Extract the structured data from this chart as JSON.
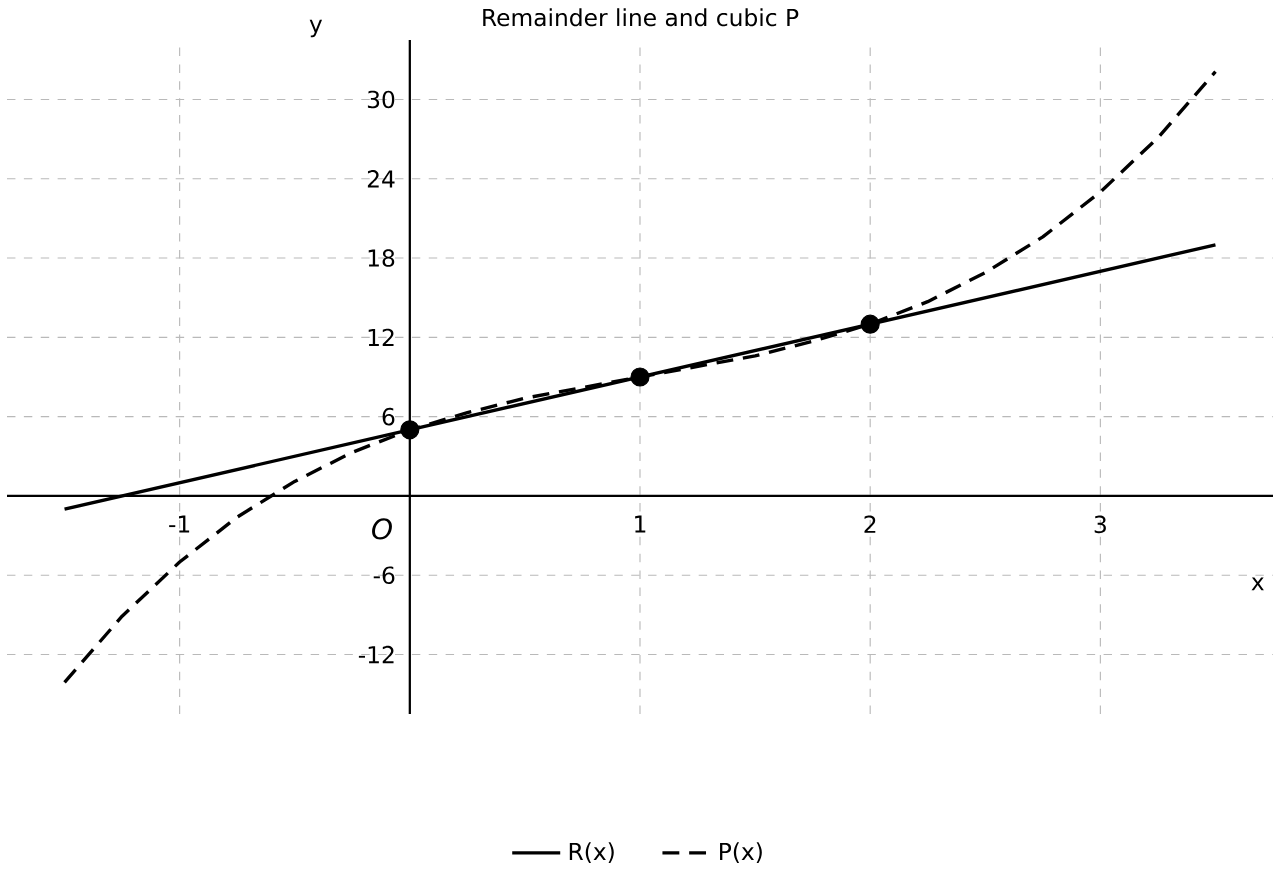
{
  "chart_data": {
    "type": "line",
    "title": "Remainder line and cubic P",
    "xlabel": "x",
    "ylabel": "y",
    "xlim": [
      -1.75,
      3.75
    ],
    "ylim": [
      -16.5,
      34.5
    ],
    "xticks": [
      -1,
      1,
      2,
      3
    ],
    "yticks": [
      -12,
      -6,
      6,
      12,
      18,
      24,
      30
    ],
    "grid": true,
    "legend": "bottom",
    "annotations": [
      "O"
    ],
    "series": [
      {
        "name": "R(x)",
        "color": "#000000",
        "line_style": "solid",
        "marker": "none",
        "x": [
          -1.5,
          3.5
        ],
        "values": [
          -1,
          19
        ]
      },
      {
        "name": "P(x)",
        "color": "#000000",
        "line_style": "dashed",
        "marker": "none",
        "x": [
          -1.5,
          -1.25,
          -1,
          -0.75,
          -0.5,
          -0.25,
          0,
          0.25,
          0.5,
          0.75,
          1,
          1.25,
          1.5,
          1.75,
          2,
          2.25,
          2.5,
          2.75,
          3,
          3.25,
          3.5
        ],
        "values": [
          -14.1,
          -9.1,
          -5,
          -1.6,
          1.1,
          3.3,
          5,
          6.3,
          7.4,
          8.2,
          9,
          9.8,
          10.6,
          11.7,
          13,
          14.7,
          16.9,
          19.6,
          23,
          27.1,
          32.1
        ]
      },
      {
        "type": "scatter",
        "color": "#000000",
        "marker": "circle",
        "x": [
          0,
          1,
          2
        ],
        "values": [
          5,
          9,
          13
        ]
      }
    ]
  }
}
